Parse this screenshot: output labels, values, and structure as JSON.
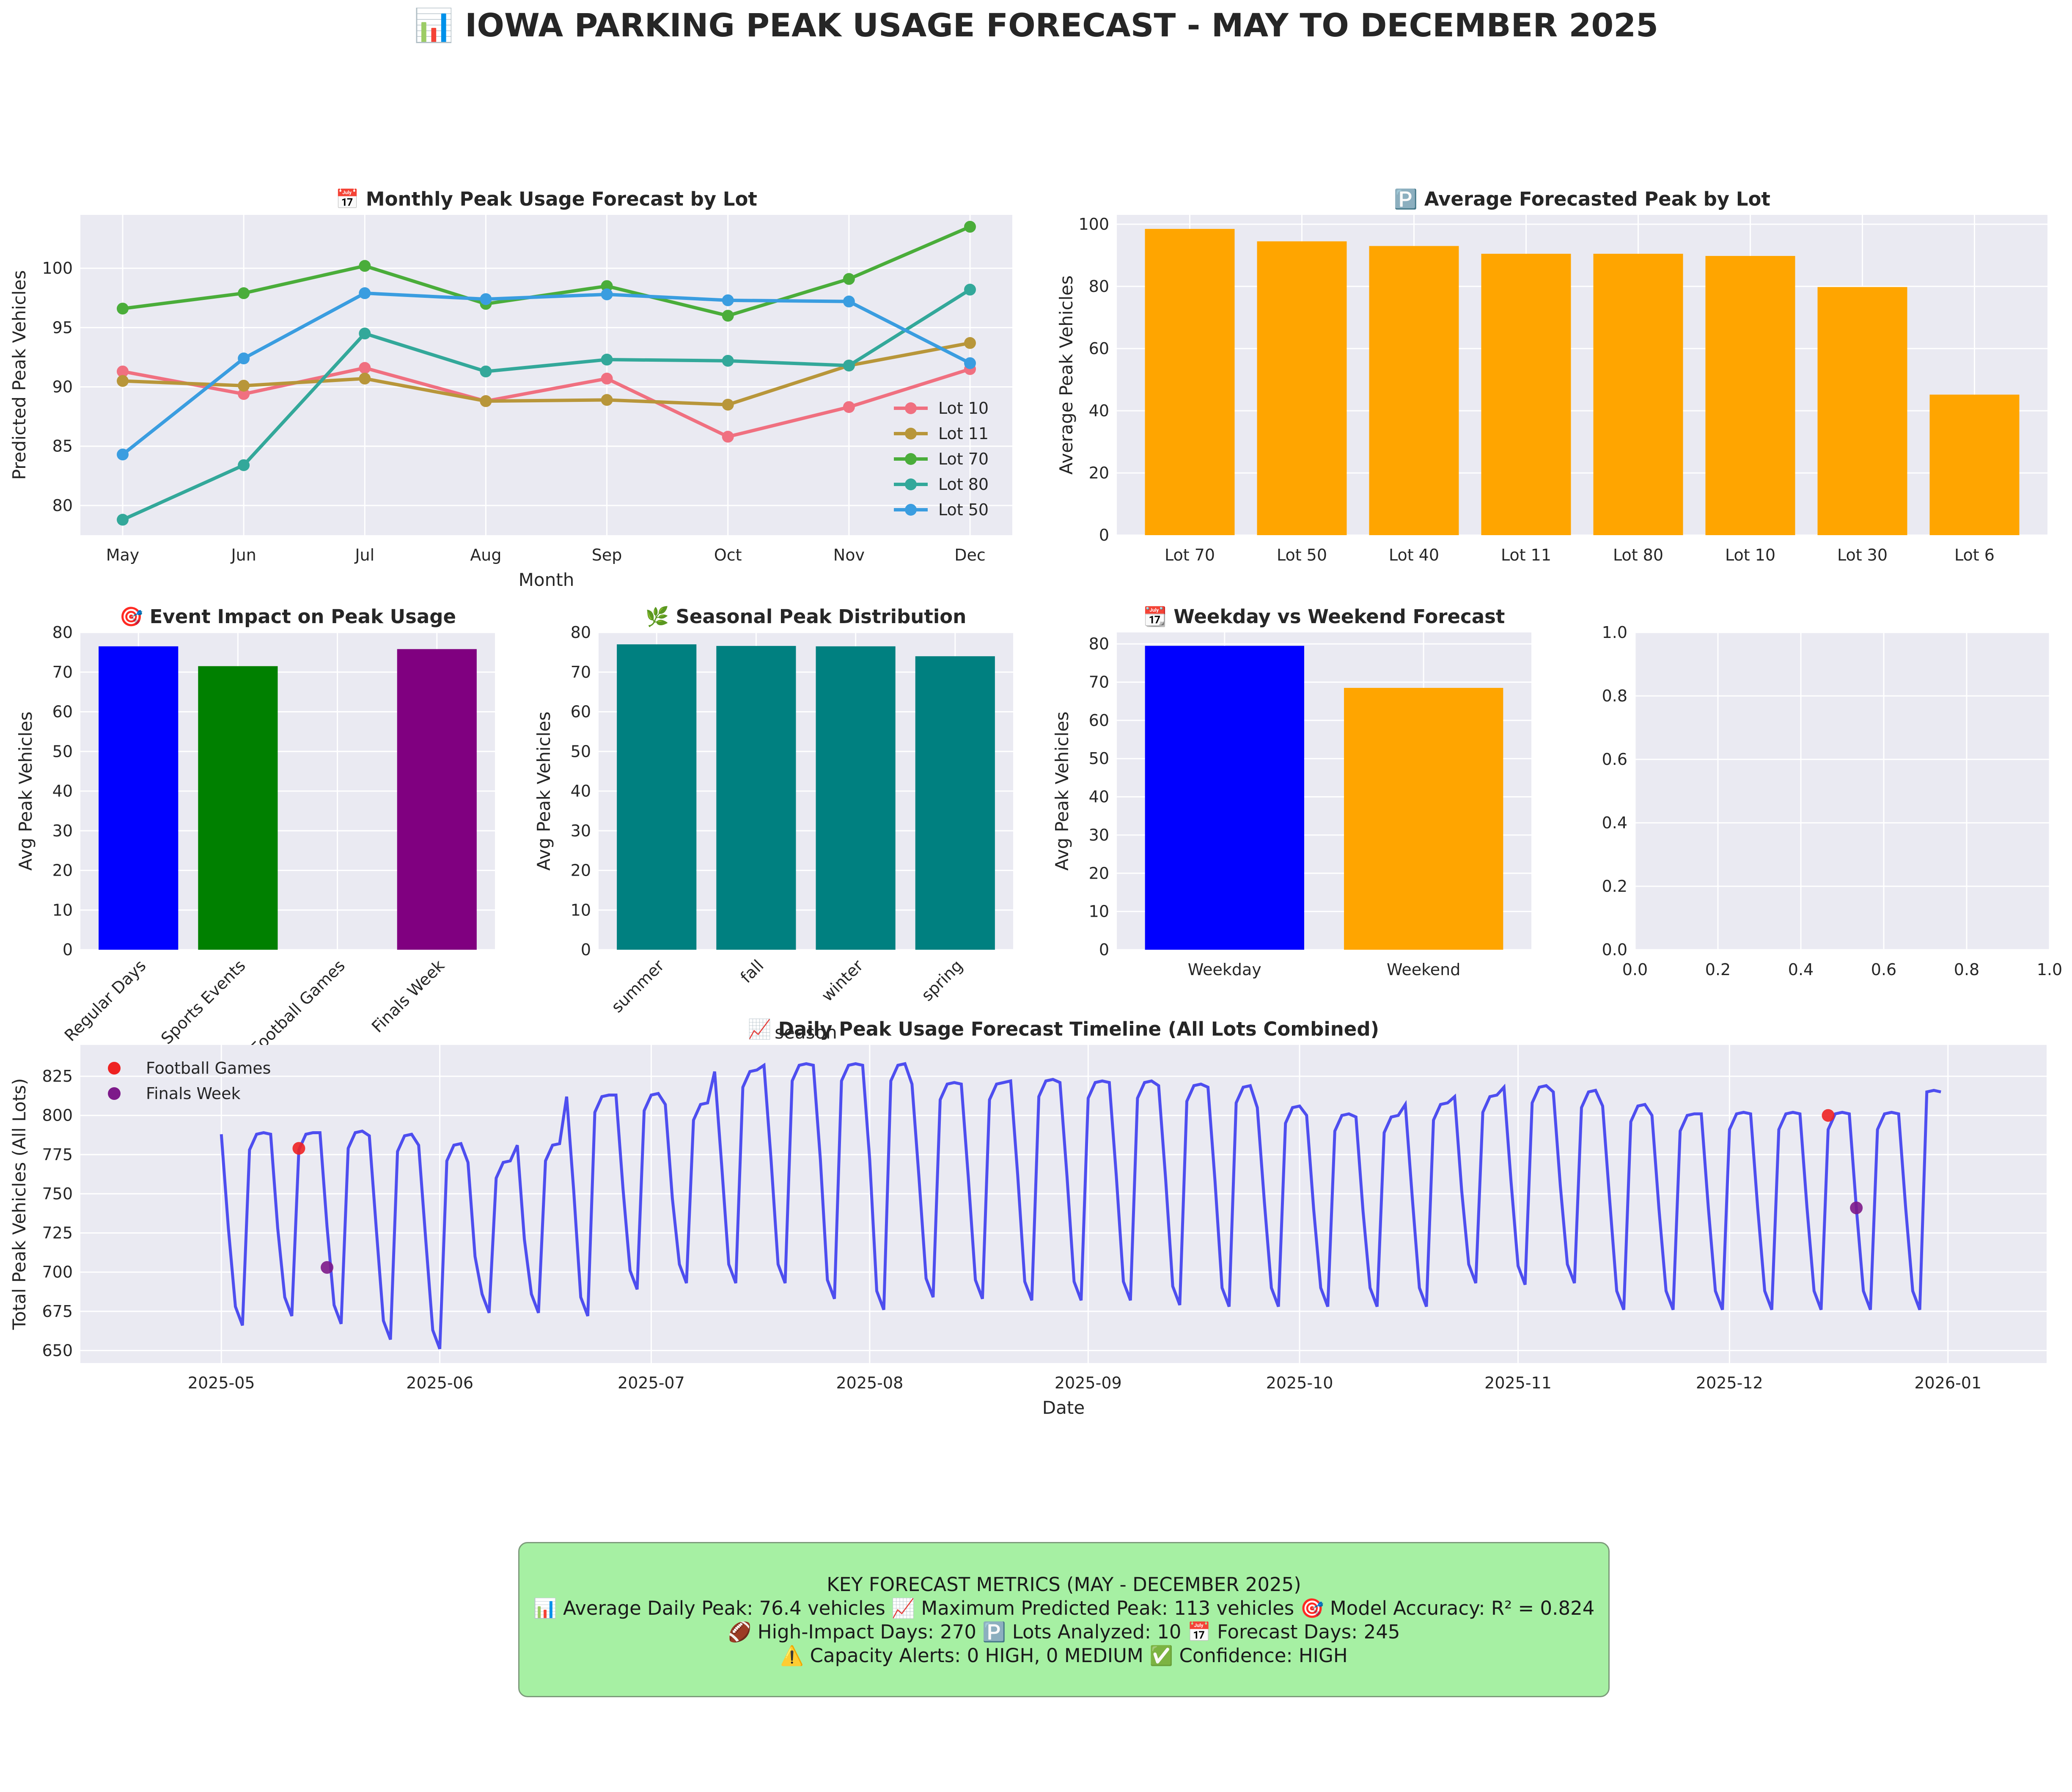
{
  "title": "📊 IOWA PARKING PEAK USAGE FORECAST - MAY TO DECEMBER 2025",
  "metrics": {
    "heading": "KEY FORECAST METRICS (MAY - DECEMBER 2025)",
    "line1": "📊 Average Daily Peak: 76.4 vehicles     📈 Maximum Predicted Peak: 113 vehicles     🎯 Model Accuracy: R² = 0.824",
    "line2": "🏈 High-Impact Days: 270     🅿️ Lots Analyzed: 10     📅 Forecast Days: 245",
    "line3": "⚠️ Capacity Alerts: 0 HIGH, 0 MEDIUM     ✅ Confidence: HIGH"
  },
  "colors": {
    "plot_bg": "#eaeaf2",
    "grid": "#ffffff",
    "orange": "#ffa500",
    "teal": "#008080",
    "timeline_line": "#3333ee",
    "football": "#ee2222",
    "finals": "#7d1a8a"
  },
  "chart_data": [
    {
      "id": "monthly",
      "type": "line",
      "title": "📅 Monthly Peak Usage Forecast by Lot",
      "xlabel": "Month",
      "ylabel": "Predicted Peak Vehicles",
      "categories": [
        "May",
        "Jun",
        "Jul",
        "Aug",
        "Sep",
        "Oct",
        "Nov",
        "Dec"
      ],
      "ylim": [
        77.5,
        104.5
      ],
      "yticks": [
        80,
        85,
        90,
        95,
        100
      ],
      "legend": "lower-right",
      "series": [
        {
          "name": "Lot 10",
          "color": "#f07080",
          "values": [
            91.3,
            89.4,
            91.6,
            88.8,
            90.7,
            85.8,
            88.3,
            91.5
          ]
        },
        {
          "name": "Lot 11",
          "color": "#b8963a",
          "values": [
            90.5,
            90.1,
            90.7,
            88.8,
            88.9,
            88.5,
            91.8,
            93.7
          ]
        },
        {
          "name": "Lot 70",
          "color": "#4aad3a",
          "values": [
            96.6,
            97.9,
            100.2,
            97.0,
            98.5,
            96.0,
            99.1,
            103.5
          ]
        },
        {
          "name": "Lot 80",
          "color": "#33a89a",
          "values": [
            78.8,
            83.4,
            94.5,
            91.3,
            92.3,
            92.2,
            91.8,
            98.2
          ]
        },
        {
          "name": "Lot 50",
          "color": "#3a9de0",
          "values": [
            84.3,
            92.4,
            97.9,
            97.4,
            97.8,
            97.3,
            97.2,
            92.0
          ]
        }
      ]
    },
    {
      "id": "avglot",
      "type": "bar",
      "title": "🅿️ Average Forecasted Peak by Lot",
      "xlabel": "",
      "ylabel": "Average Peak Vehicles",
      "categories": [
        "Lot 70",
        "Lot 50",
        "Lot 40",
        "Lot 11",
        "Lot 80",
        "Lot 10",
        "Lot 30",
        "Lot 6"
      ],
      "values": [
        98.5,
        94.5,
        93.0,
        90.5,
        90.5,
        89.8,
        79.8,
        45.2
      ],
      "ylim": [
        0,
        103
      ],
      "yticks": [
        0,
        20,
        40,
        60,
        80,
        100
      ]
    },
    {
      "id": "event",
      "type": "bar",
      "title": "🎯 Event Impact on Peak Usage",
      "xlabel": "",
      "ylabel": "Avg Peak Vehicles",
      "categories": [
        "Regular Days",
        "Sports Events",
        "Football Games",
        "Finals Week"
      ],
      "values": [
        76.5,
        71.5,
        0,
        75.8
      ],
      "bar_colors": [
        "#0000ff",
        "#008000",
        "#ff0000",
        "#800080"
      ],
      "ylim": [
        0,
        80
      ],
      "yticks": [
        0,
        10,
        20,
        30,
        40,
        50,
        60,
        70,
        80
      ]
    },
    {
      "id": "season",
      "type": "bar",
      "title": "🌿 Seasonal Peak Distribution",
      "xlabel": "season",
      "ylabel": "Avg Peak Vehicles",
      "categories": [
        "summer",
        "fall",
        "winter",
        "spring"
      ],
      "values": [
        77.0,
        76.6,
        76.5,
        74.0
      ],
      "ylim": [
        0,
        80
      ],
      "yticks": [
        0,
        10,
        20,
        30,
        40,
        50,
        60,
        70,
        80
      ]
    },
    {
      "id": "weekday",
      "type": "bar",
      "title": "📆 Weekday vs Weekend Forecast",
      "xlabel": "",
      "ylabel": "Avg Peak Vehicles",
      "categories": [
        "Weekday",
        "Weekend"
      ],
      "values": [
        79.5,
        68.5
      ],
      "bar_colors": [
        "#0000ff",
        "#ffa500"
      ],
      "ylim": [
        0,
        83
      ],
      "yticks": [
        0,
        10,
        20,
        30,
        40,
        50,
        60,
        70,
        80
      ]
    },
    {
      "id": "empty",
      "type": "scatter",
      "title": "",
      "xlim": [
        0,
        1
      ],
      "ylim": [
        0,
        1
      ],
      "xticks": [
        "0.0",
        "0.2",
        "0.4",
        "0.6",
        "0.8",
        "1.0"
      ],
      "yticks": [
        "0.0",
        "0.2",
        "0.4",
        "0.6",
        "0.8",
        "1.0"
      ]
    },
    {
      "id": "timeline",
      "type": "line",
      "title": "📈 Daily Peak Usage Forecast Timeline (All Lots Combined)",
      "xlabel": "Date",
      "ylabel": "Total Peak Vehicles (All Lots)",
      "x_start": "2025-05-01",
      "x_end": "2025-12-31",
      "ylim": [
        642,
        845
      ],
      "yticks": [
        650,
        675,
        700,
        725,
        750,
        775,
        800,
        825
      ],
      "xticks": [
        "2025-05",
        "2025-06",
        "2025-07",
        "2025-08",
        "2025-09",
        "2025-10",
        "2025-11",
        "2025-12",
        "2026-01"
      ],
      "legend": "upper-left",
      "weekday_high": [
        788,
        788,
        789,
        787,
        781,
        770,
        781,
        812,
        813,
        807,
        828,
        832,
        832,
        832,
        820,
        820,
        822,
        821,
        821,
        819,
        818,
        805,
        800,
        799,
        807,
        812,
        818,
        815,
        806,
        800,
        801
      ],
      "weekend_low": [
        666,
        672,
        667,
        657,
        651,
        674,
        674,
        672,
        689,
        693,
        693,
        693,
        683,
        676,
        684,
        683,
        682,
        682,
        682,
        679,
        678,
        678,
        678,
        678,
        678,
        693,
        692,
        693,
        676,
        676,
        676
      ],
      "tail_values": [
        815,
        816,
        815
      ],
      "series": [
        {
          "name": "Football Games",
          "points": [
            [
              "2025-05-12",
              779
            ],
            [
              "2025-12-15",
              800
            ]
          ]
        },
        {
          "name": "Finals Week",
          "points": [
            [
              "2025-05-16",
              703
            ],
            [
              "2025-12-19",
              741
            ]
          ]
        }
      ]
    }
  ]
}
